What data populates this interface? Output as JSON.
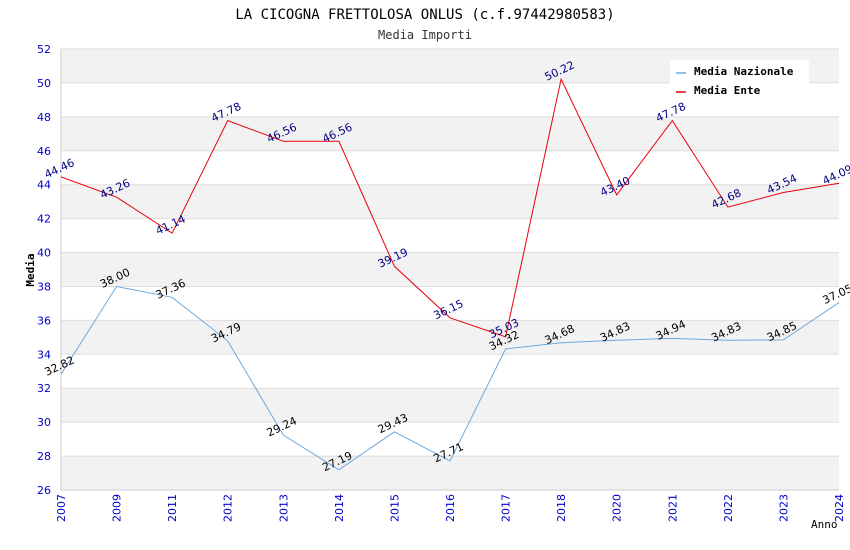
{
  "chart_data": {
    "type": "line",
    "title": "LA CICOGNA FRETTOLOSA ONLUS (c.f.97442980583)",
    "subtitle": "Media Importi",
    "xlabel": "Anno",
    "ylabel": "Media",
    "ylim": [
      26,
      52
    ],
    "yticks": [
      "26",
      "28",
      "30",
      "32",
      "34",
      "36",
      "38",
      "40",
      "42",
      "44",
      "46",
      "48",
      "50",
      "52"
    ],
    "categories": [
      "2007",
      "2009",
      "2011",
      "2012",
      "2013",
      "2014",
      "2015",
      "2016",
      "2017",
      "2018",
      "2020",
      "2021",
      "2022",
      "2023",
      "2024"
    ],
    "series": [
      {
        "name": "Media Nazionale",
        "color": "#6fa8dc",
        "values": [
          32.82,
          38.0,
          37.36,
          34.79,
          29.24,
          27.19,
          29.43,
          27.71,
          34.32,
          34.68,
          34.83,
          34.94,
          34.83,
          34.85,
          37.05
        ],
        "labels": [
          "32.82",
          "38.00",
          "37.36",
          "34.79",
          "29.24",
          "27.19",
          "29.43",
          "27.71",
          "34.32",
          "34.68",
          "34.83",
          "34.94",
          "34.83",
          "34.85",
          "37.05"
        ]
      },
      {
        "name": "Media Ente",
        "color": "#e8000b",
        "values": [
          44.46,
          43.26,
          41.14,
          47.78,
          46.56,
          46.56,
          39.19,
          36.15,
          35.03,
          50.22,
          43.4,
          47.78,
          42.68,
          43.54,
          44.09
        ],
        "labels": [
          "44.46",
          "43.26",
          "41.14",
          "47.78",
          "46.56",
          "46.56",
          "39.19",
          "36.15",
          "35.03",
          "50.22",
          "43.40",
          "47.78",
          "42.68",
          "43.54",
          "44.09"
        ]
      }
    ],
    "legend": "top-right",
    "grid": true
  }
}
